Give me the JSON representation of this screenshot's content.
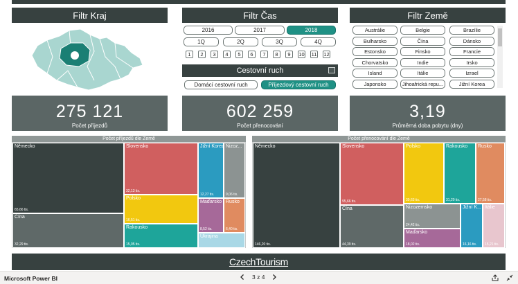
{
  "filters": {
    "kraj_title": "Filtr Kraj",
    "cas_title": "Filtr Čas",
    "zeme_title": "Filtr Země"
  },
  "time": {
    "years": [
      "2016",
      "2017",
      "2018"
    ],
    "selected_year": "2018",
    "quarters": [
      "1Q",
      "2Q",
      "3Q",
      "4Q"
    ],
    "months": [
      "1",
      "2",
      "3",
      "4",
      "5",
      "6",
      "7",
      "8",
      "9",
      "10",
      "11",
      "12"
    ]
  },
  "travel": {
    "title": "Cestovní ruch",
    "options": [
      "Domácí cestovní ruch",
      "Příjezdový cestovní ruch"
    ],
    "selected": "Příjezdový cestovní ruch"
  },
  "countries": [
    "Austrálie",
    "Belgie",
    "Brazílie",
    "Bulharsko",
    "Čína",
    "Dánsko",
    "Estonsko",
    "Finsko",
    "Francie",
    "Chorvatsko",
    "Indie",
    "Irsko",
    "Island",
    "Itálie",
    "Izrael",
    "Japonsko",
    "Jihoafrická repu...",
    "Jižní Korea"
  ],
  "kpis": [
    {
      "value": "275 121",
      "label": "Počet příjezdů"
    },
    {
      "value": "602 259",
      "label": "Počet přenocování"
    },
    {
      "value": "3,19",
      "label": "Průměrná doba pobytu (dny)"
    }
  ],
  "colors": {
    "header": "#374140",
    "kpi": "#5b6665",
    "accent": "#1f9185"
  },
  "treemap_left": {
    "title": "Počet příjezdů dle Země",
    "cells": [
      {
        "name": "Německo",
        "value": "65,66 tis.",
        "color": "#374140"
      },
      {
        "name": "Čína",
        "value": "32,29 tis.",
        "color": "#5f6968"
      },
      {
        "name": "Slovensko",
        "value": "32,13 tis.",
        "color": "#d05f5f"
      },
      {
        "name": "Polsko",
        "value": "16,51 tis.",
        "color": "#f2c80f"
      },
      {
        "name": "Rakousko",
        "value": "15,05 tis.",
        "color": "#1ea59a"
      },
      {
        "name": "Jižní Korea",
        "value": "12,27 tis.",
        "color": "#2b9bc0"
      },
      {
        "name": "Nizoz...",
        "value": "9,06 tis.",
        "color": "#8c9392"
      },
      {
        "name": "Maďarsko",
        "value": "8,52 tis.",
        "color": "#a66999"
      },
      {
        "name": "Rusko",
        "value": "6,40 tis.",
        "color": "#e08b60"
      },
      {
        "name": "Ukrajina",
        "value": "",
        "color": "#a9d8e6"
      }
    ]
  },
  "treemap_right": {
    "title": "Počet přenocování dle Země",
    "cells": [
      {
        "name": "Německo",
        "value": "146,20 tis.",
        "color": "#374140"
      },
      {
        "name": "Slovensko",
        "value": "95,66 tis.",
        "color": "#d05f5f"
      },
      {
        "name": "Čína",
        "value": "44,39 tis.",
        "color": "#5f6968"
      },
      {
        "name": "Polsko",
        "value": "39,63 tis.",
        "color": "#f2c80f"
      },
      {
        "name": "Rakousko",
        "value": "31,20 tis.",
        "color": "#1ea59a"
      },
      {
        "name": "Rusko",
        "value": "27,58 tis.",
        "color": "#e08b60"
      },
      {
        "name": "Nizozemsko",
        "value": "24,42 tis.",
        "color": "#8c9392"
      },
      {
        "name": "Maďarsko",
        "value": "18,02 tis.",
        "color": "#a66999"
      },
      {
        "name": "Jižní K...",
        "value": "16,16 tis.",
        "color": "#2b9bc0"
      },
      {
        "name": "Itálie",
        "value": "15,21 tis.",
        "color": "#e8c6ce"
      }
    ]
  },
  "footer": {
    "logo": "CzechTourism"
  },
  "status": {
    "app": "Microsoft Power BI",
    "page": "3 z 4"
  }
}
